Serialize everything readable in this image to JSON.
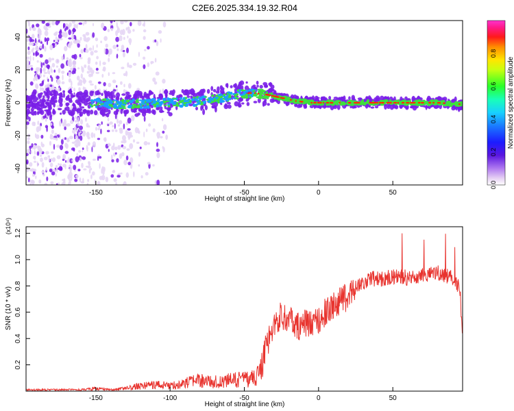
{
  "page_title": "C2E6.2025.334.19.32.R04",
  "colors": {
    "spectrogram_lowest": "#e6d6f5",
    "spectrogram_low": "#7a1fe8",
    "spectrogram_mid": "#1aa0ff",
    "spectrogram_high": "#3ee03e",
    "spectrogram_peak": "#ff2a00",
    "snr_line": "#e8332e"
  },
  "chart_data": [
    {
      "type": "heatmap",
      "title": "C2E6.2025.334.19.32.R04",
      "xlabel": "Height of straight line (km)",
      "ylabel": "Frequency (Hz)",
      "xlim": [
        -197,
        97
      ],
      "ylim": [
        -50,
        50
      ],
      "xticks": [
        -150,
        -100,
        -50,
        0,
        50
      ],
      "yticks": [
        -40,
        -20,
        0,
        20,
        40
      ],
      "colorbar": {
        "label": "Normalized spectral amplitude",
        "range": [
          0,
          1
        ],
        "ticks": [
          "0.0",
          "0.2",
          "0.4",
          "0.6",
          "0.8"
        ]
      },
      "ridge": {
        "x": [
          -197,
          -160,
          -130,
          -100,
          -80,
          -65,
          -55,
          -45,
          -35,
          -25,
          -15,
          -5,
          0,
          20,
          50,
          80,
          97
        ],
        "y": [
          0,
          0,
          -1,
          0,
          1,
          3,
          5,
          6,
          5,
          3,
          1,
          0,
          0,
          0,
          0,
          0,
          -1
        ]
      }
    },
    {
      "type": "line",
      "xlabel": "Height of straight line (km)",
      "ylabel": "SNR (10 * v/v)",
      "y_multiplier": "(x10⁴)",
      "xlim": [
        -197,
        97
      ],
      "ylim": [
        0,
        1.25
      ],
      "xticks": [
        -150,
        -100,
        -50,
        0,
        50
      ],
      "yticks": [
        "0.2",
        "0.4",
        "0.6",
        "0.8",
        "1.0",
        "1.2"
      ],
      "series": [
        {
          "name": "SNR",
          "x": [
            -197,
            -180,
            -160,
            -150,
            -140,
            -130,
            -120,
            -110,
            -100,
            -90,
            -80,
            -70,
            -60,
            -50,
            -42,
            -38,
            -35,
            -30,
            -25,
            -20,
            -15,
            -10,
            -5,
            0,
            5,
            10,
            20,
            25,
            30,
            35,
            40,
            50,
            55,
            60,
            70,
            80,
            90,
            95,
            97
          ],
          "values": [
            0.01,
            0.01,
            0.01,
            0.02,
            0.01,
            0.02,
            0.04,
            0.05,
            0.04,
            0.06,
            0.08,
            0.07,
            0.08,
            0.09,
            0.1,
            0.2,
            0.35,
            0.5,
            0.58,
            0.55,
            0.48,
            0.52,
            0.5,
            0.55,
            0.6,
            0.65,
            0.72,
            0.8,
            0.82,
            0.86,
            0.85,
            0.87,
            0.88,
            0.86,
            0.88,
            0.9,
            0.86,
            0.78,
            0.45
          ]
        }
      ]
    }
  ]
}
